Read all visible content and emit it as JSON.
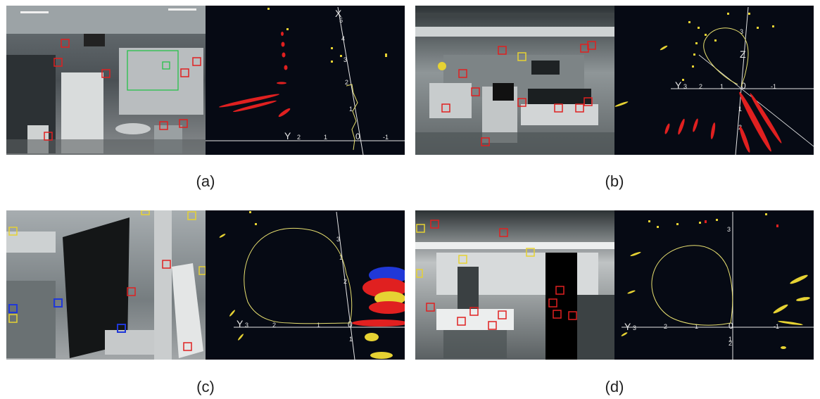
{
  "figure": {
    "captions": [
      "(a)",
      "(b)",
      "(c)",
      "(d)"
    ]
  },
  "panels": [
    {
      "id": "a",
      "axis_labels": {
        "vertical": "X",
        "horizontal": "Y"
      },
      "ticks": [
        "2",
        "1",
        "0",
        "-1",
        "1",
        "2",
        "3",
        "4",
        "5"
      ]
    },
    {
      "id": "b",
      "axis_labels": {
        "vertical": "Z",
        "horizontal": "Y"
      },
      "ticks": [
        "3",
        "2",
        "1",
        "0",
        "-1",
        "1",
        "2",
        "3"
      ]
    },
    {
      "id": "c",
      "axis_labels": {
        "horizontal": "Y"
      },
      "ticks": [
        "3",
        "2",
        "1",
        "0",
        "1",
        "2",
        "1",
        "3"
      ]
    },
    {
      "id": "d",
      "axis_labels": {
        "horizontal": "Y"
      },
      "ticks": [
        "3",
        "2",
        "1",
        "0",
        "-1",
        "1",
        "2",
        "3"
      ]
    }
  ],
  "colors": {
    "feature_box": "#e02020",
    "predicted_box": "#e6d233",
    "active_box": "#26c24a",
    "blue_feature": "#2038d8",
    "trajectory": "#e8e070",
    "map_background": "#060a14",
    "axis": "#e6e6e6"
  }
}
